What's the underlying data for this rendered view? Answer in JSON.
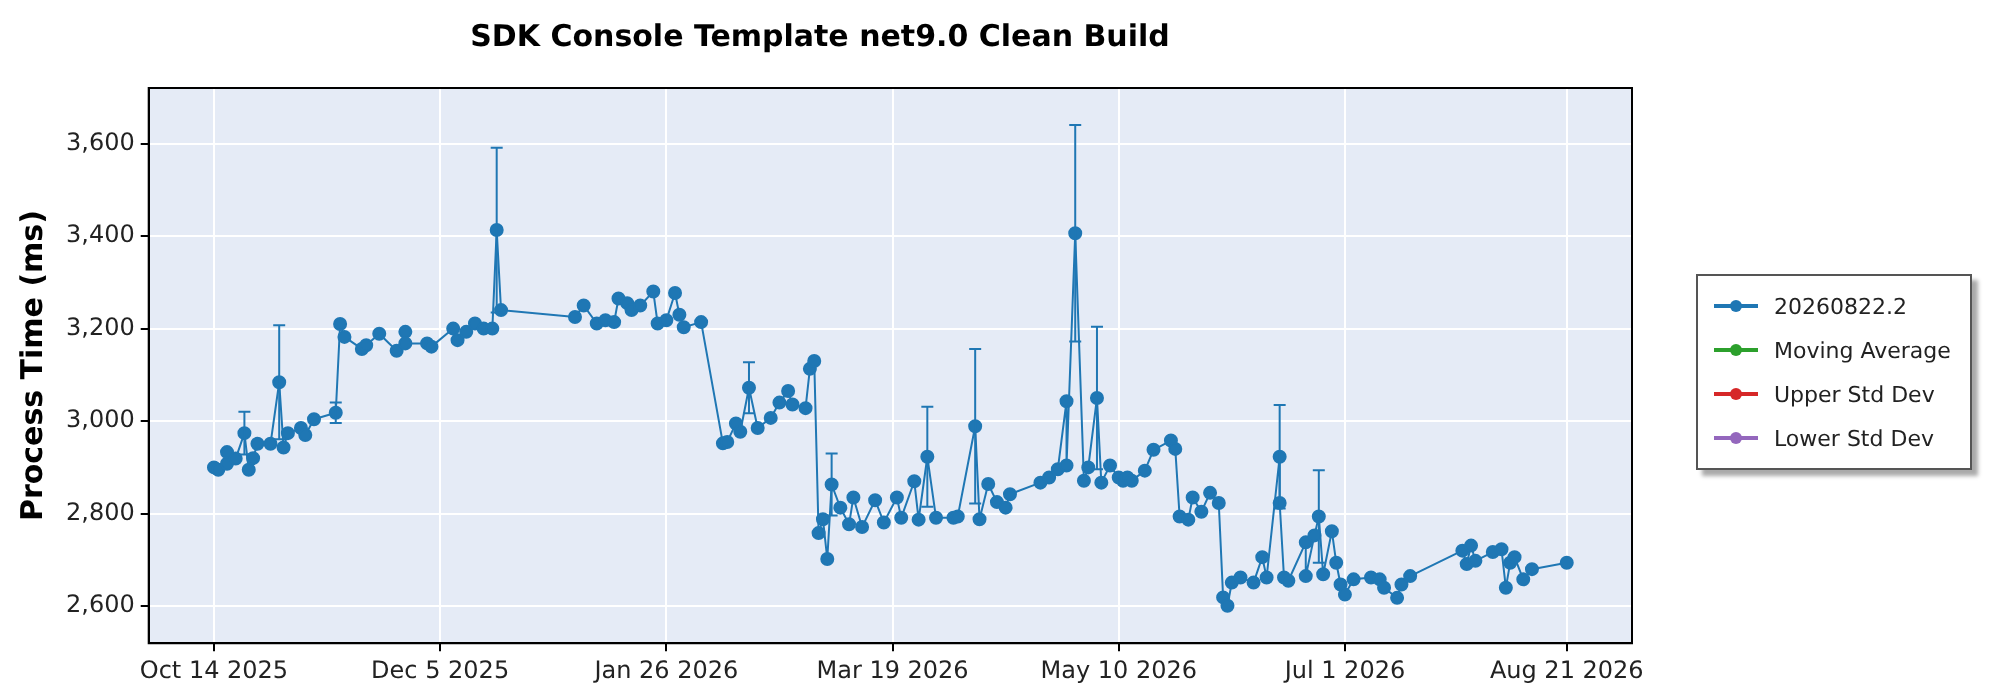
{
  "chart_data": {
    "type": "line",
    "title": "SDK Console Template net9.0 Clean Build",
    "ylabel": "Process Time (ms)",
    "x": [
      "2025-10-14",
      "2025-10-15",
      "2025-10-17",
      "2025-10-17",
      "2025-10-19",
      "2025-10-21",
      "2025-10-22",
      "2025-10-23",
      "2025-10-24",
      "2025-10-27",
      "2025-10-29",
      "2025-10-30",
      "2025-10-31",
      "2025-11-03",
      "2025-11-04",
      "2025-11-06",
      "2025-11-11",
      "2025-11-12",
      "2025-11-13",
      "2025-11-17",
      "2025-11-18",
      "2025-11-21",
      "2025-11-25",
      "2025-11-27",
      "2025-11-27",
      "2025-12-02",
      "2025-12-03",
      "2025-12-08",
      "2025-12-09",
      "2025-12-11",
      "2025-12-13",
      "2025-12-15",
      "2025-12-17",
      "2025-12-18",
      "2025-12-19",
      "2026-01-05",
      "2026-01-07",
      "2026-01-10",
      "2026-01-12",
      "2026-01-14",
      "2026-01-15",
      "2026-01-17",
      "2026-01-18",
      "2026-01-20",
      "2026-01-23",
      "2026-01-24",
      "2026-01-26",
      "2026-01-28",
      "2026-01-29",
      "2026-01-30",
      "2026-02-03",
      "2026-02-08",
      "2026-02-09",
      "2026-02-11",
      "2026-02-12",
      "2026-02-14",
      "2026-02-16",
      "2026-02-19",
      "2026-02-21",
      "2026-02-23",
      "2026-02-24",
      "2026-02-27",
      "2026-02-28",
      "2026-03-01",
      "2026-03-02",
      "2026-03-03",
      "2026-03-04",
      "2026-03-05",
      "2026-03-07",
      "2026-03-09",
      "2026-03-10",
      "2026-03-12",
      "2026-03-15",
      "2026-03-17",
      "2026-03-20",
      "2026-03-21",
      "2026-03-24",
      "2026-03-25",
      "2026-03-27",
      "2026-03-29",
      "2026-04-02",
      "2026-04-03",
      "2026-04-07",
      "2026-04-08",
      "2026-04-10",
      "2026-04-12",
      "2026-04-14",
      "2026-04-15",
      "2026-04-22",
      "2026-04-24",
      "2026-04-26",
      "2026-04-28",
      "2026-04-28",
      "2026-04-30",
      "2026-05-02",
      "2026-05-03",
      "2026-05-05",
      "2026-05-06",
      "2026-05-08",
      "2026-05-10",
      "2026-05-11",
      "2026-05-12",
      "2026-05-13",
      "2026-05-16",
      "2026-05-18",
      "2026-05-22",
      "2026-05-23",
      "2026-05-24",
      "2026-05-26",
      "2026-05-27",
      "2026-05-29",
      "2026-05-31",
      "2026-06-02",
      "2026-06-03",
      "2026-06-04",
      "2026-06-05",
      "2026-06-07",
      "2026-06-10",
      "2026-06-12",
      "2026-06-13",
      "2026-06-16",
      "2026-06-16",
      "2026-06-17",
      "2026-06-18",
      "2026-06-22",
      "2026-06-22",
      "2026-06-24",
      "2026-06-25",
      "2026-06-26",
      "2026-06-28",
      "2026-06-29",
      "2026-06-30",
      "2026-07-01",
      "2026-07-03",
      "2026-07-07",
      "2026-07-09",
      "2026-07-10",
      "2026-07-13",
      "2026-07-14",
      "2026-07-16",
      "2026-07-28",
      "2026-07-29",
      "2026-07-30",
      "2026-07-31",
      "2026-08-04",
      "2026-08-06",
      "2026-08-07",
      "2026-08-08",
      "2026-08-09",
      "2026-08-11",
      "2026-08-13",
      "2026-08-21"
    ],
    "series": [
      {
        "name": "20260822.2",
        "color": "#1f77b4",
        "values": [
          2900,
          2895,
          2908,
          2933,
          2919,
          2974,
          2895,
          2920,
          2951,
          2951,
          3084,
          2943,
          2974,
          2985,
          2970,
          3004,
          3018,
          3210,
          3182,
          3156,
          3164,
          3189,
          3152,
          3193,
          3168,
          3168,
          3161,
          3200,
          3175,
          3193,
          3211,
          3200,
          3200,
          3413,
          3240,
          3225,
          3250,
          3211,
          3218,
          3214,
          3265,
          3255,
          3240,
          3250,
          3280,
          3211,
          3218,
          3277,
          3230,
          3203,
          3214,
          2952,
          2955,
          2995,
          2977,
          3072,
          2985,
          3007,
          3040,
          3065,
          3036,
          3028,
          3113,
          3130,
          2758,
          2788,
          2702,
          2863,
          2813,
          2777,
          2835,
          2771,
          2829,
          2781,
          2835,
          2791,
          2870,
          2787,
          2923,
          2791,
          2791,
          2794,
          2989,
          2788,
          2864,
          2825,
          2813,
          2842,
          2867,
          2878,
          2896,
          3043,
          2904,
          3406,
          2871,
          2900,
          3050,
          2867,
          2904,
          2878,
          2871,
          2878,
          2871,
          2893,
          2938,
          2958,
          2940,
          2794,
          2787,
          2835,
          2804,
          2845,
          2823,
          2619,
          2601,
          2651,
          2662,
          2651,
          2706,
          2662,
          2923,
          2823,
          2662,
          2655,
          2738,
          2665,
          2753,
          2794,
          2669,
          2762,
          2694,
          2647,
          2625,
          2658,
          2662,
          2658,
          2640,
          2618,
          2647,
          2665,
          2720,
          2691,
          2731,
          2698,
          2717,
          2723,
          2640,
          2694,
          2706,
          2658,
          2680,
          2694
        ],
        "errors": [
          null,
          null,
          null,
          null,
          null,
          46,
          null,
          null,
          null,
          null,
          123,
          null,
          null,
          null,
          null,
          null,
          22,
          null,
          null,
          null,
          null,
          null,
          null,
          null,
          null,
          null,
          null,
          null,
          null,
          null,
          null,
          null,
          null,
          178,
          null,
          null,
          null,
          null,
          null,
          null,
          null,
          null,
          null,
          null,
          null,
          null,
          null,
          null,
          null,
          null,
          null,
          null,
          null,
          null,
          null,
          55,
          null,
          null,
          null,
          null,
          null,
          null,
          null,
          null,
          null,
          null,
          null,
          67,
          null,
          null,
          null,
          null,
          null,
          null,
          null,
          null,
          null,
          null,
          108,
          null,
          null,
          null,
          167,
          null,
          null,
          null,
          null,
          null,
          null,
          null,
          null,
          null,
          null,
          234,
          null,
          null,
          154,
          null,
          null,
          null,
          null,
          null,
          null,
          null,
          null,
          null,
          null,
          null,
          null,
          null,
          null,
          null,
          null,
          null,
          null,
          null,
          null,
          null,
          null,
          null,
          112,
          null,
          null,
          null,
          null,
          null,
          null,
          100,
          null,
          null,
          null,
          null,
          null,
          null,
          null,
          null,
          null,
          null,
          null,
          null,
          null,
          null,
          null,
          null,
          null,
          null,
          null,
          null,
          null,
          null,
          null,
          null
        ]
      },
      {
        "name": "Moving Average",
        "color": "#2ca02c",
        "values": [
          null,
          null,
          null,
          null,
          null,
          null,
          null,
          null,
          null,
          null,
          null,
          null,
          null,
          null,
          null,
          null,
          null,
          null,
          null,
          null,
          null,
          null,
          null,
          null,
          null,
          null,
          null,
          null,
          null,
          null,
          null,
          null,
          null,
          null,
          null,
          null,
          null,
          null,
          null,
          null,
          null,
          null,
          null,
          null,
          null,
          null,
          null,
          null,
          null,
          null,
          null,
          null,
          null,
          null,
          null,
          null,
          null,
          null,
          null,
          null,
          null,
          null,
          null,
          null,
          null,
          null,
          null,
          null,
          null,
          null,
          null,
          null,
          null,
          null,
          null,
          null,
          null,
          null,
          null,
          null,
          null,
          null,
          null,
          null,
          null,
          null,
          null,
          null,
          null,
          null,
          null,
          null,
          null,
          null,
          null,
          null,
          null,
          null,
          null,
          null,
          null,
          null,
          null,
          null,
          null,
          null,
          null,
          null,
          null,
          null,
          null,
          null,
          null,
          null,
          null,
          null,
          null,
          null,
          null,
          null,
          null,
          null,
          null,
          null,
          null,
          null,
          null,
          null,
          null,
          null,
          null,
          null,
          null,
          null,
          null,
          null,
          null,
          null,
          null,
          null,
          null,
          null,
          null,
          null,
          null,
          null,
          null,
          null,
          null,
          null,
          null,
          null
        ]
      },
      {
        "name": "Upper Std Dev",
        "color": "#d62728",
        "values": [
          null,
          null,
          null,
          null,
          null,
          null,
          null,
          null,
          null,
          null,
          null,
          null,
          null,
          null,
          null,
          null,
          null,
          null,
          null,
          null,
          null,
          null,
          null,
          null,
          null,
          null,
          null,
          null,
          null,
          null,
          null,
          null,
          null,
          null,
          null,
          null,
          null,
          null,
          null,
          null,
          null,
          null,
          null,
          null,
          null,
          null,
          null,
          null,
          null,
          null,
          null,
          null,
          null,
          null,
          null,
          null,
          null,
          null,
          null,
          null,
          null,
          null,
          null,
          null,
          null,
          null,
          null,
          null,
          null,
          null,
          null,
          null,
          null,
          null,
          null,
          null,
          null,
          null,
          null,
          null,
          null,
          null,
          null,
          null,
          null,
          null,
          null,
          null,
          null,
          null,
          null,
          null,
          null,
          null,
          null,
          null,
          null,
          null,
          null,
          null,
          null,
          null,
          null,
          null,
          null,
          null,
          null,
          null,
          null,
          null,
          null,
          null,
          null,
          null,
          null,
          null,
          null,
          null,
          null,
          null,
          null,
          null,
          null,
          null,
          null,
          null,
          null,
          null,
          null,
          null,
          null,
          null,
          null,
          null,
          null,
          null,
          null,
          null,
          null,
          null,
          null,
          null,
          null,
          null,
          null,
          null,
          null,
          null,
          null,
          null,
          null,
          null
        ]
      },
      {
        "name": "Lower Std Dev",
        "color": "#9467bd",
        "values": [
          null,
          null,
          null,
          null,
          null,
          null,
          null,
          null,
          null,
          null,
          null,
          null,
          null,
          null,
          null,
          null,
          null,
          null,
          null,
          null,
          null,
          null,
          null,
          null,
          null,
          null,
          null,
          null,
          null,
          null,
          null,
          null,
          null,
          null,
          null,
          null,
          null,
          null,
          null,
          null,
          null,
          null,
          null,
          null,
          null,
          null,
          null,
          null,
          null,
          null,
          null,
          null,
          null,
          null,
          null,
          null,
          null,
          null,
          null,
          null,
          null,
          null,
          null,
          null,
          null,
          null,
          null,
          null,
          null,
          null,
          null,
          null,
          null,
          null,
          null,
          null,
          null,
          null,
          null,
          null,
          null,
          null,
          null,
          null,
          null,
          null,
          null,
          null,
          null,
          null,
          null,
          null,
          null,
          null,
          null,
          null,
          null,
          null,
          null,
          null,
          null,
          null,
          null,
          null,
          null,
          null,
          null,
          null,
          null,
          null,
          null,
          null,
          null,
          null,
          null,
          null,
          null,
          null,
          null,
          null,
          null,
          null,
          null,
          null,
          null,
          null,
          null,
          null,
          null,
          null,
          null,
          null,
          null,
          null,
          null,
          null,
          null,
          null,
          null,
          null,
          null,
          null,
          null,
          null,
          null,
          null,
          null,
          null,
          null,
          null,
          null,
          null
        ]
      }
    ],
    "xlim": [
      "2025-09-29",
      "2026-09-05"
    ],
    "xticks": [
      {
        "value": "2025-10-14",
        "label": "Oct 14 2025"
      },
      {
        "value": "2025-12-05",
        "label": "Dec 5 2025"
      },
      {
        "value": "2026-01-26",
        "label": "Jan 26 2026"
      },
      {
        "value": "2026-03-19",
        "label": "Mar 19 2026"
      },
      {
        "value": "2026-05-10",
        "label": "May 10 2026"
      },
      {
        "value": "2026-07-01",
        "label": "Jul 1 2026"
      },
      {
        "value": "2026-08-21",
        "label": "Aug 21 2026"
      }
    ],
    "ylim": [
      2520,
      3720
    ],
    "yticks": [
      {
        "value": 2600,
        "label": "2,600"
      },
      {
        "value": 2800,
        "label": "2,800"
      },
      {
        "value": 3000,
        "label": "3,000"
      },
      {
        "value": 3200,
        "label": "3,200"
      },
      {
        "value": 3400,
        "label": "3,400"
      },
      {
        "value": 3600,
        "label": "3,600"
      }
    ],
    "grid": true,
    "legend": "right",
    "marker": "circle",
    "line_style": "solid"
  }
}
